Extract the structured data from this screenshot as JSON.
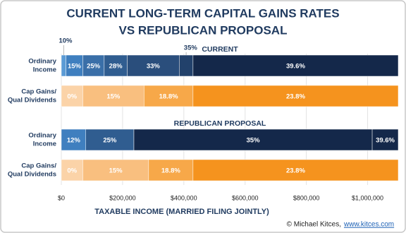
{
  "chart_data": {
    "type": "segmented-bar",
    "title": [
      "CURRENT LONG-TERM CAPITAL GAINS RATES",
      "VS REPUBLICAN PROPOSAL"
    ],
    "x_label": "TAXABLE INCOME (MARRIED FILING JOINTLY)",
    "xlim": [
      0,
      1100000
    ],
    "xticks": [
      {
        "value": 0,
        "label": "$0"
      },
      {
        "value": 200000,
        "label": "$200,000"
      },
      {
        "value": 400000,
        "label": "$400,000"
      },
      {
        "value": 600000,
        "label": "$600,000"
      },
      {
        "value": 800000,
        "label": "$800,000"
      },
      {
        "value": 1000000,
        "label": "$1,000,000"
      }
    ],
    "grid": true,
    "groups": [
      {
        "name": "CURRENT",
        "rows": [
          {
            "label_lines": [
              "Ordinary",
              "Income"
            ],
            "rates": [
              "10%",
              "15%",
              "25%",
              "28%",
              "33%",
              "35%",
              "39.6%"
            ],
            "upper_limits": [
              15000,
              70000,
              140000,
              215000,
              385000,
              430000
            ],
            "colors": [
              "#5b9bd5",
              "#3f7fbf",
              "#3a6fa8",
              "#305d90",
              "#2a4e7c",
              "#22416b",
              "#14284a"
            ]
          },
          {
            "label_lines": [
              "Cap Gains/",
              "Qual Dividends"
            ],
            "rates": [
              "0%",
              "15%",
              "18.8%",
              "23.8%"
            ],
            "upper_limits": [
              70000,
              270000,
              430000
            ],
            "colors": [
              "#fbd3a8",
              "#f9bf7f",
              "#f7a849",
              "#f5931e"
            ]
          }
        ]
      },
      {
        "name": "REPUBLICAN PROPOSAL",
        "rows": [
          {
            "label_lines": [
              "Ordinary",
              "Income"
            ],
            "rates": [
              "12%",
              "25%",
              "35%",
              "39.6%"
            ],
            "upper_limits": [
              80000,
              237000,
              1015000
            ],
            "colors": [
              "#3f7fbf",
              "#305d90",
              "#14284a",
              "#14284a"
            ]
          },
          {
            "label_lines": [
              "Cap Gains/",
              "Qual Dividends"
            ],
            "rates": [
              "0%",
              "15%",
              "18.8%",
              "23.8%"
            ],
            "upper_limits": [
              70000,
              285000,
              430000
            ],
            "colors": [
              "#fbd3a8",
              "#f9bf7f",
              "#f7a849",
              "#f5931e"
            ]
          }
        ]
      }
    ]
  },
  "footer": {
    "text": "© Michael Kitces,",
    "link": "www.kitces.com"
  }
}
